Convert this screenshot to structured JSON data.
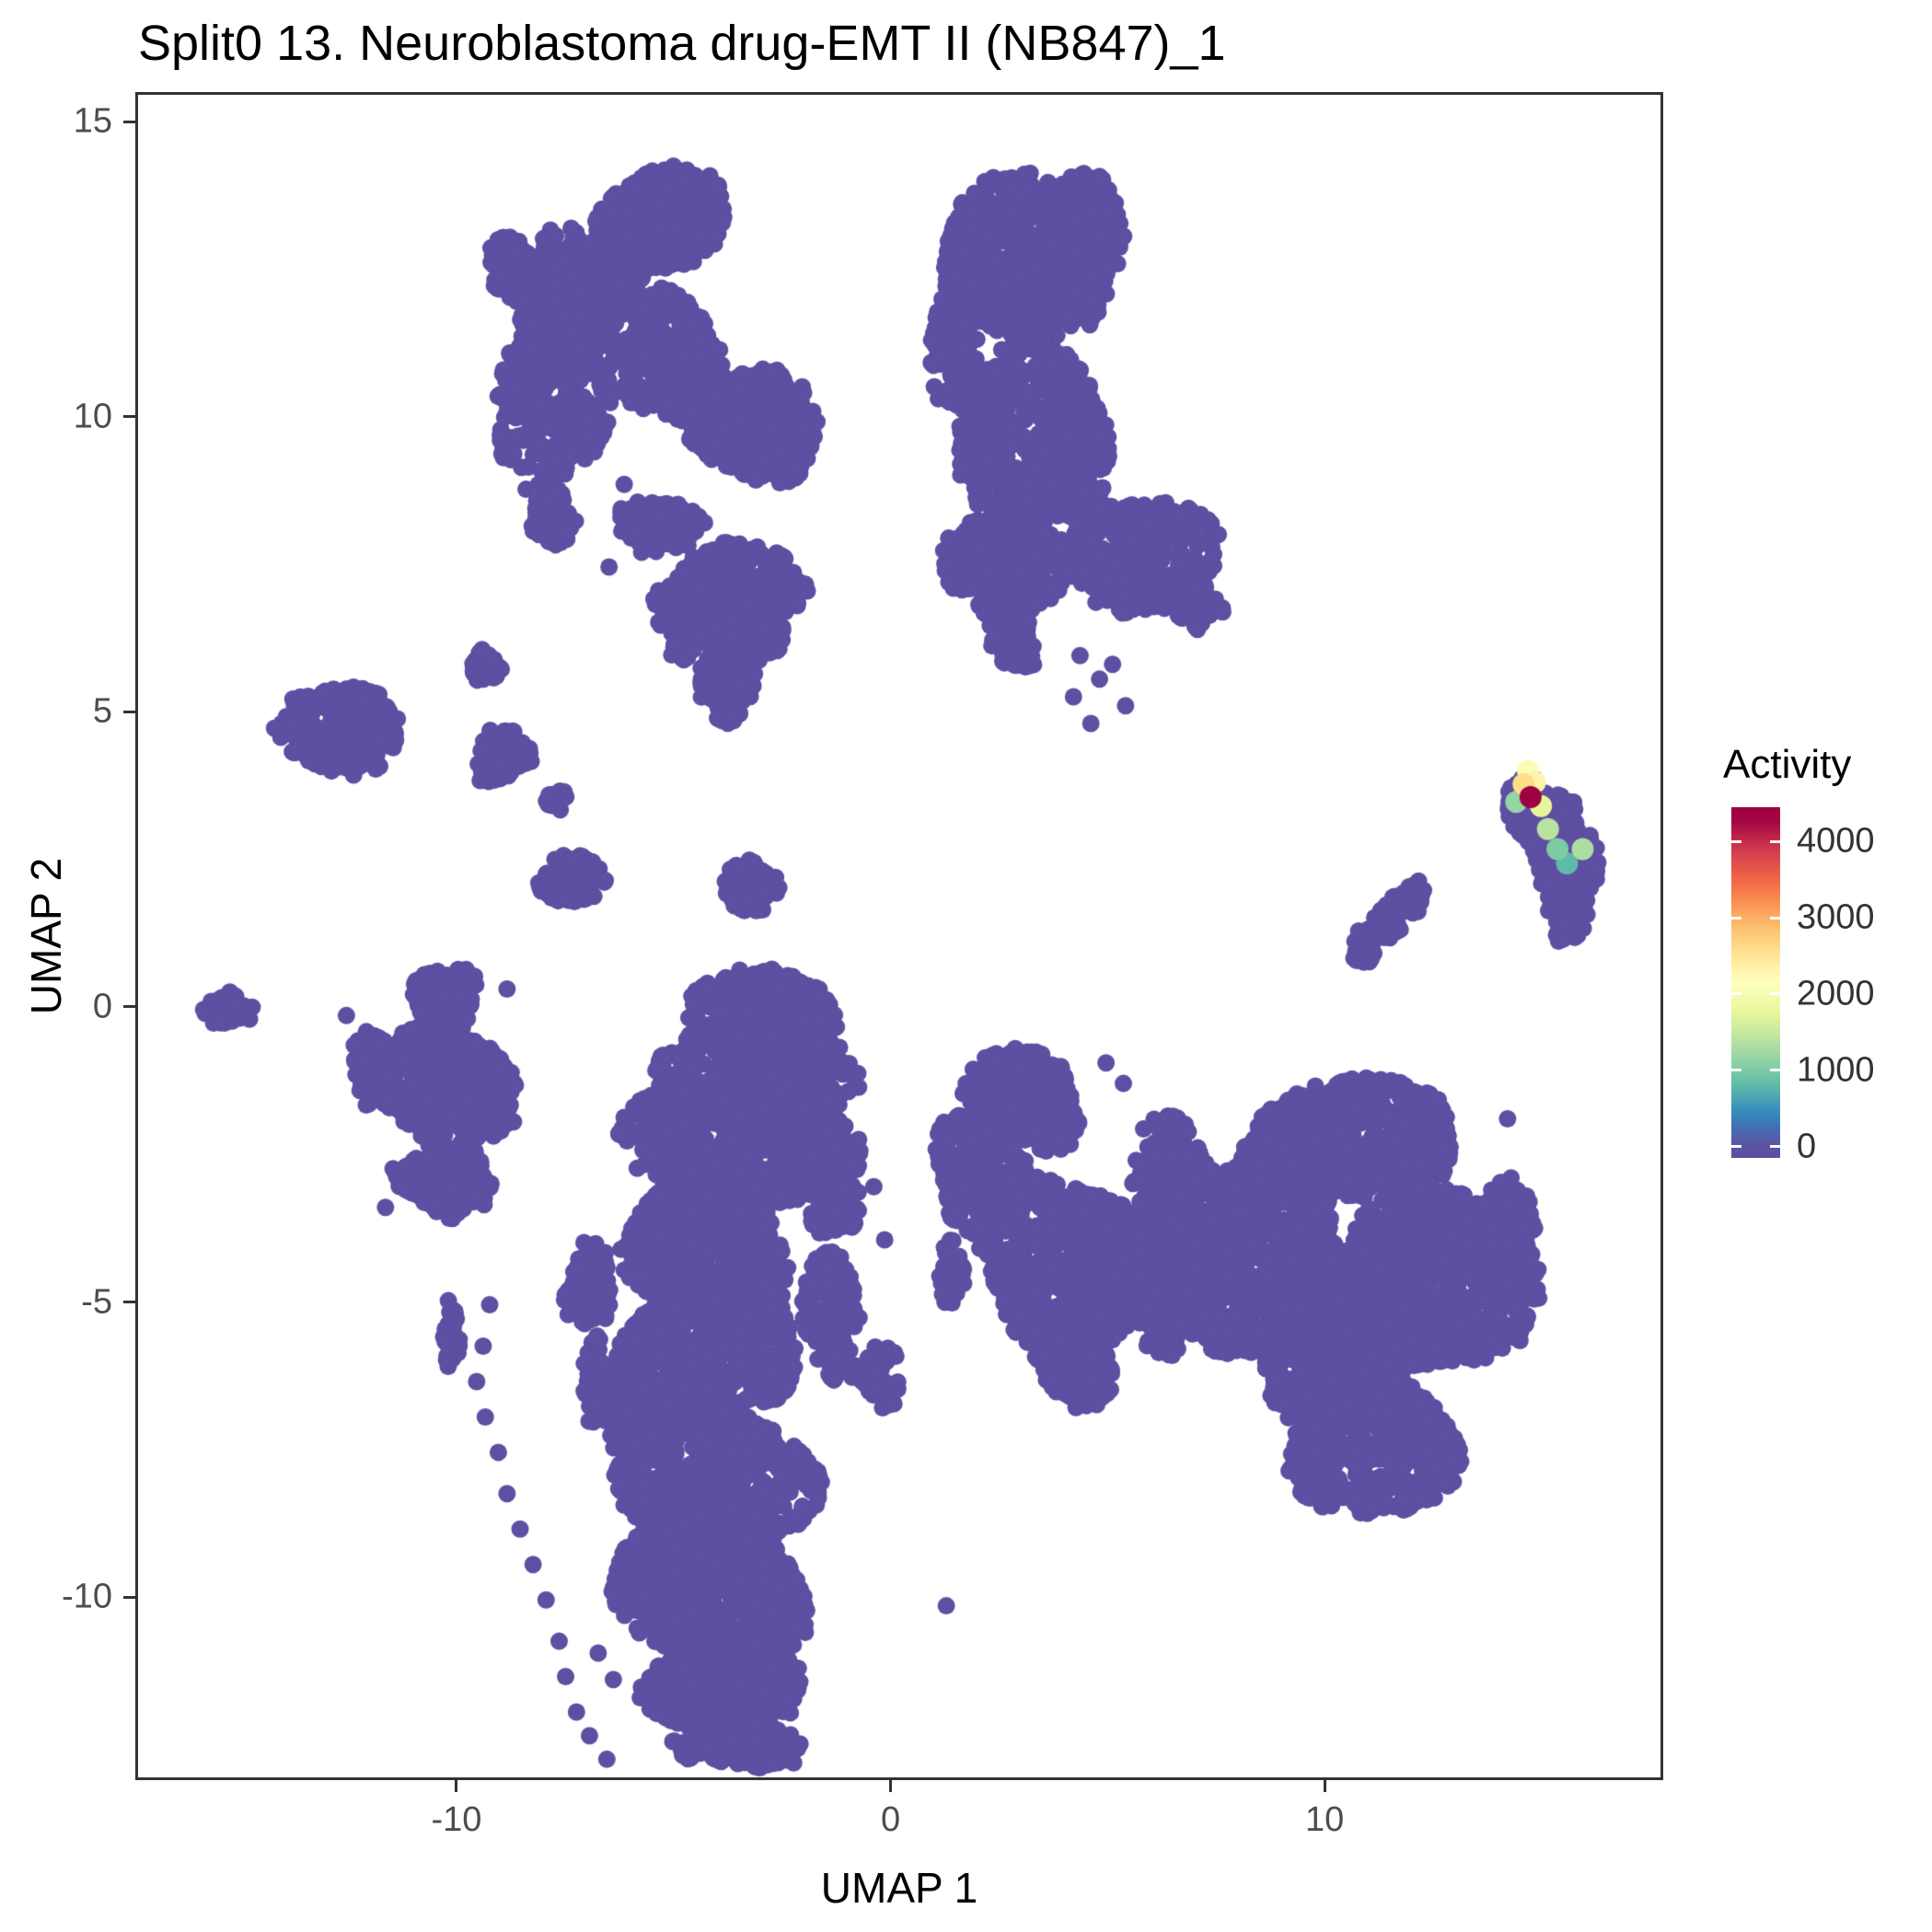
{
  "title": "Split0 13. Neuroblastoma drug-EMT II (NB847)_1",
  "chart_data": {
    "type": "scatter",
    "title": "Split0 13. Neuroblastoma drug-EMT II (NB847)_1",
    "xlabel": "UMAP 1",
    "ylabel": "UMAP 2",
    "xlim": [
      -17.4,
      17.8
    ],
    "ylim": [
      -13.1,
      15.5
    ],
    "x_ticks": [
      -10,
      0,
      10
    ],
    "y_ticks": [
      -10,
      -5,
      0,
      5,
      10,
      15
    ],
    "grid": false,
    "base_value": 0,
    "point_radius_px": 9.5,
    "highlight_radius_px": 12,
    "seed": 7,
    "colormap": {
      "name": "spectral_reversed",
      "domain": [
        0,
        4300
      ],
      "stops": [
        "#5e4fa2",
        "#3288bd",
        "#66c2a5",
        "#abdda4",
        "#e6f598",
        "#ffffbf",
        "#fee08b",
        "#fdae61",
        "#f46d43",
        "#d53e4f",
        "#9e0142"
      ]
    },
    "legend": {
      "title": "Activity",
      "position": "right",
      "ticks": [
        0,
        1000,
        2000,
        3000,
        4000
      ],
      "bar_domain": [
        -150,
        4450
      ]
    },
    "clusters": [
      [
        -5.3,
        13.4,
        1.5,
        0.85,
        300
      ],
      [
        -6.6,
        12.4,
        0.9,
        0.8,
        140
      ],
      [
        -7.7,
        10.9,
        1.35,
        2.1,
        520
      ],
      [
        -8.75,
        12.55,
        0.55,
        0.6,
        70
      ],
      [
        -5.3,
        11.2,
        1.0,
        1.0,
        240
      ],
      [
        -3.2,
        9.9,
        1.4,
        1.05,
        300
      ],
      [
        -4.6,
        10.6,
        0.8,
        0.7,
        130
      ],
      [
        -5.4,
        8.2,
        0.9,
        0.5,
        110
      ],
      [
        -7.9,
        8.35,
        0.6,
        0.5,
        70
      ],
      [
        -3.8,
        7.1,
        1.85,
        0.7,
        300
      ],
      [
        -3.8,
        6.3,
        1.3,
        0.55,
        190
      ],
      [
        -3.8,
        5.55,
        0.7,
        0.45,
        90
      ],
      [
        -3.78,
        5.05,
        0.32,
        0.25,
        25
      ],
      [
        3.0,
        12.7,
        1.9,
        1.4,
        520
      ],
      [
        1.4,
        11.3,
        0.65,
        1.0,
        150
      ],
      [
        4.4,
        13.3,
        1.0,
        0.8,
        150
      ],
      [
        3.2,
        9.7,
        2.0,
        1.4,
        560
      ],
      [
        5.7,
        7.7,
        1.6,
        1.1,
        300
      ],
      [
        7.0,
        6.85,
        0.55,
        0.45,
        55
      ],
      [
        2.6,
        7.5,
        1.3,
        0.95,
        250
      ],
      [
        2.75,
        6.3,
        0.6,
        0.5,
        70
      ],
      [
        -12.75,
        4.75,
        1.35,
        0.8,
        230
      ],
      [
        -9.35,
        5.8,
        0.4,
        0.3,
        30
      ],
      [
        -9.0,
        4.3,
        0.6,
        0.5,
        80
      ],
      [
        -7.7,
        3.55,
        0.3,
        0.2,
        15
      ],
      [
        -7.4,
        2.2,
        0.75,
        0.45,
        80
      ],
      [
        -3.3,
        2.1,
        0.6,
        0.5,
        65
      ],
      [
        -15.3,
        0.0,
        0.55,
        0.33,
        35,
        20
      ],
      [
        -10.3,
        0.2,
        0.85,
        0.5,
        110
      ],
      [
        -10.4,
        -1.3,
        1.7,
        1.05,
        440
      ],
      [
        -10.3,
        -2.9,
        1.1,
        0.6,
        150
      ],
      [
        -12.0,
        -1.0,
        0.5,
        0.6,
        70
      ],
      [
        -10.2,
        -5.5,
        0.22,
        0.55,
        28
      ],
      [
        -2.95,
        0.0,
        1.6,
        0.75,
        300
      ],
      [
        -3.2,
        -1.1,
        2.1,
        0.9,
        420
      ],
      [
        -4.7,
        -2.2,
        1.5,
        1.0,
        300
      ],
      [
        -2.4,
        -2.4,
        1.4,
        1.0,
        280
      ],
      [
        -4.3,
        -4.0,
        2.0,
        1.2,
        520
      ],
      [
        -4.35,
        -5.8,
        2.1,
        1.4,
        650
      ],
      [
        -4.3,
        -7.8,
        2.3,
        1.4,
        650
      ],
      [
        -4.2,
        -9.8,
        2.3,
        1.3,
        580
      ],
      [
        -3.8,
        -11.4,
        1.8,
        0.9,
        330
      ],
      [
        -3.6,
        -12.4,
        1.3,
        0.5,
        150
      ],
      [
        -7.0,
        -4.7,
        0.55,
        0.75,
        90
      ],
      [
        -6.8,
        -6.4,
        0.45,
        0.7,
        60
      ],
      [
        -1.4,
        -5.2,
        0.6,
        1.2,
        150
      ],
      [
        -0.3,
        -6.2,
        0.45,
        0.55,
        55
      ],
      [
        -1.3,
        -3.4,
        0.55,
        0.5,
        55
      ],
      [
        3.0,
        -1.5,
        1.4,
        0.8,
        290
      ],
      [
        2.0,
        -2.8,
        1.05,
        1.0,
        240
      ],
      [
        4.0,
        -4.3,
        2.1,
        1.5,
        780
      ],
      [
        6.5,
        -3.0,
        1.0,
        1.15,
        240
      ],
      [
        6.3,
        -4.9,
        0.8,
        0.85,
        140
      ],
      [
        4.2,
        -6.1,
        0.9,
        0.6,
        140
      ],
      [
        1.35,
        -4.5,
        0.28,
        0.6,
        40
      ],
      [
        10.6,
        -2.2,
        2.7,
        0.9,
        560
      ],
      [
        8.4,
        -4.2,
        1.9,
        1.8,
        680
      ],
      [
        12.4,
        -4.6,
        2.1,
        1.8,
        760
      ],
      [
        10.3,
        -5.6,
        1.7,
        1.5,
        520
      ],
      [
        11.0,
        -7.4,
        2.2,
        1.1,
        480
      ],
      [
        6.6,
        -3.2,
        0.5,
        0.7,
        70
      ],
      [
        14.2,
        -3.6,
        0.55,
        0.8,
        90
      ],
      [
        11.55,
        1.62,
        1.0,
        0.26,
        90,
        36
      ],
      [
        10.78,
        1.05,
        0.3,
        0.28,
        25
      ],
      [
        14.6,
        3.4,
        0.5,
        0.55,
        80
      ],
      [
        15.05,
        3.2,
        0.7,
        0.6,
        140
      ],
      [
        15.45,
        2.55,
        0.8,
        0.75,
        190
      ],
      [
        15.55,
        1.75,
        0.5,
        0.45,
        80
      ],
      [
        15.5,
        1.33,
        0.28,
        0.22,
        20
      ]
    ],
    "sparse_points": [
      [
        -1.76,
        9.96
      ],
      [
        -6.2,
        8.9
      ],
      [
        -4.9,
        8.5
      ],
      [
        -4.35,
        8.25
      ],
      [
        -5.8,
        7.75
      ],
      [
        -6.55,
        7.5
      ],
      [
        4.3,
        6.0
      ],
      [
        4.75,
        5.6
      ],
      [
        4.15,
        5.3
      ],
      [
        5.05,
        5.85
      ],
      [
        5.35,
        5.15
      ],
      [
        4.55,
        4.85
      ],
      [
        -12.6,
        -0.1
      ],
      [
        -8.9,
        0.35
      ],
      [
        -8.75,
        -1.9
      ],
      [
        -11.7,
        -3.35
      ],
      [
        -9.3,
        -5.0
      ],
      [
        -9.45,
        -5.7
      ],
      [
        -9.6,
        -6.3
      ],
      [
        -9.4,
        -6.9
      ],
      [
        -9.1,
        -7.5
      ],
      [
        -8.9,
        -8.2
      ],
      [
        -8.6,
        -8.8
      ],
      [
        -8.3,
        -9.4
      ],
      [
        -8.0,
        -10.0
      ],
      [
        -7.7,
        -10.7
      ],
      [
        -7.55,
        -11.3
      ],
      [
        -7.3,
        -11.9
      ],
      [
        -7.0,
        -12.3
      ],
      [
        -6.6,
        -12.7
      ],
      [
        -6.8,
        -10.9
      ],
      [
        -6.45,
        -11.35
      ],
      [
        1.22,
        -10.1
      ],
      [
        4.9,
        -0.9
      ],
      [
        5.3,
        -1.25
      ],
      [
        -0.8,
        -2.2
      ],
      [
        -0.45,
        -3.0
      ],
      [
        -0.2,
        -3.9
      ],
      [
        6.15,
        -1.9
      ],
      [
        14.15,
        -1.85
      ],
      [
        16.2,
        2.35
      ],
      [
        16.05,
        2.95
      ]
    ],
    "highlight_points": [
      [
        14.35,
        3.52,
        1150
      ],
      [
        14.62,
        4.05,
        2050
      ],
      [
        14.52,
        3.82,
        2600
      ],
      [
        14.78,
        3.85,
        2300
      ],
      [
        14.68,
        3.6,
        4300
      ],
      [
        14.92,
        3.45,
        1750
      ],
      [
        15.08,
        3.06,
        1400
      ],
      [
        15.3,
        2.72,
        1000
      ],
      [
        15.52,
        2.48,
        800
      ],
      [
        15.88,
        2.72,
        1300
      ]
    ]
  }
}
